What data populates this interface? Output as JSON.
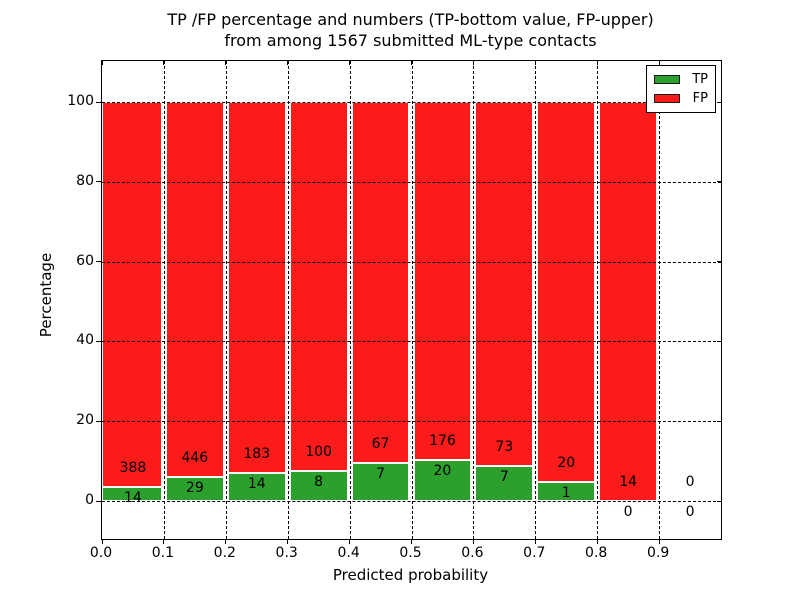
{
  "chart_data": {
    "type": "bar",
    "stacked": true,
    "title": "TP /FP percentage and numbers (TP-bottom value, FP-upper)\nfrom among 1567 submitted ML-type contacts",
    "xlabel": "Predicted probability",
    "ylabel": "Percentage",
    "x_tick_labels": [
      "0.0",
      "0.1",
      "0.2",
      "0.3",
      "0.4",
      "0.5",
      "0.6",
      "0.7",
      "0.8",
      "0.9"
    ],
    "y_ticks": [
      0,
      20,
      40,
      60,
      80,
      100
    ],
    "xlim": [
      0.0,
      1.0
    ],
    "ylim": [
      -9.5,
      110.5
    ],
    "grid": "dashed black gridlines on both axes, drawn over bars",
    "bin_width": 0.1,
    "categories": [
      "0.0-0.1",
      "0.1-0.2",
      "0.2-0.3",
      "0.3-0.4",
      "0.4-0.5",
      "0.5-0.6",
      "0.6-0.7",
      "0.7-0.8",
      "0.8-0.9",
      "0.9-1.0"
    ],
    "series": [
      {
        "name": "TP",
        "color": "#2ca02c",
        "counts": [
          14,
          29,
          14,
          8,
          7,
          20,
          7,
          1,
          0,
          0
        ]
      },
      {
        "name": "FP",
        "color": "#fb1b1b",
        "counts": [
          388,
          446,
          183,
          100,
          67,
          176,
          73,
          20,
          14,
          0
        ]
      }
    ],
    "bar_value_unit": "percent of bin total (TP+FP stack to 100%)",
    "total_contacts": 1567,
    "legend": {
      "position": "upper right",
      "entries": [
        {
          "label": "TP",
          "color": "#2ca02c"
        },
        {
          "label": "FP",
          "color": "#fb1b1b"
        }
      ]
    }
  }
}
